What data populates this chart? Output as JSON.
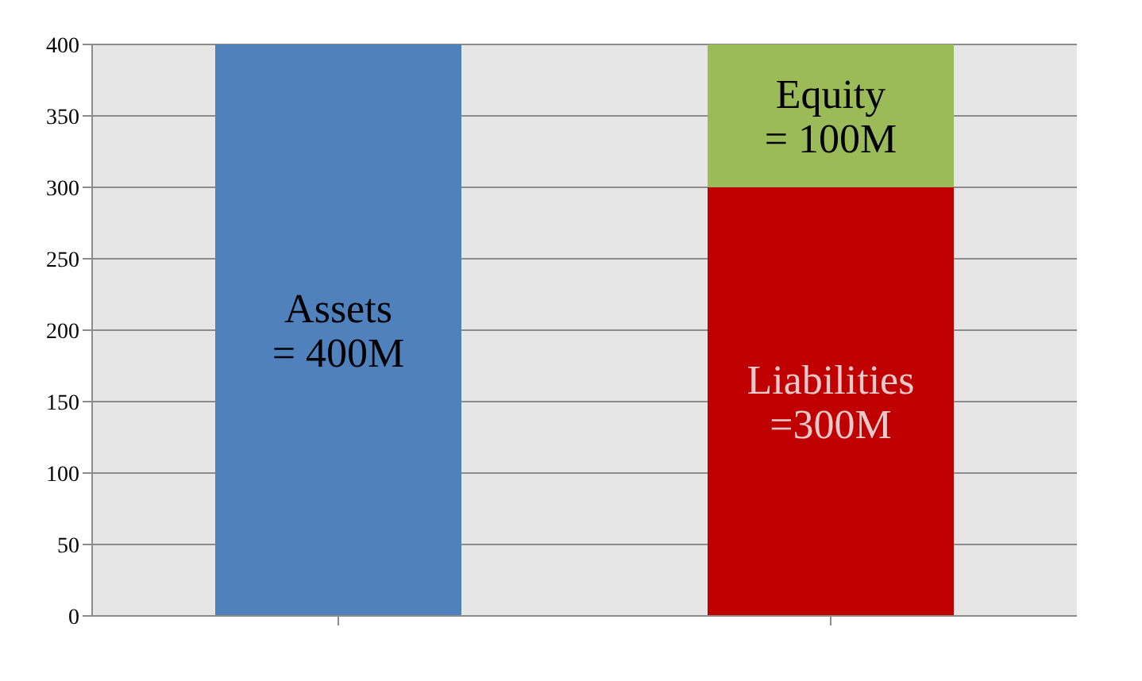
{
  "chart_data": {
    "type": "bar",
    "categories": [
      null,
      null
    ],
    "stacked": true,
    "series": [
      {
        "color": "#4f81bd",
        "values": [
          400,
          null
        ],
        "value_labels": [
          "Assets\n= 400M",
          null
        ]
      },
      {
        "color": "#c00000",
        "values": [
          null,
          300
        ],
        "value_labels": [
          null,
          "Liabilities\n=300M"
        ]
      },
      {
        "color": "#9bbb59",
        "values": [
          null,
          100
        ],
        "value_labels": [
          null,
          "Equity\n= 100M"
        ]
      }
    ],
    "ylim": [
      0,
      400
    ],
    "yticks": [
      0,
      50,
      100,
      150,
      200,
      250,
      300,
      350,
      400
    ],
    "grid": "y",
    "legend": false
  }
}
